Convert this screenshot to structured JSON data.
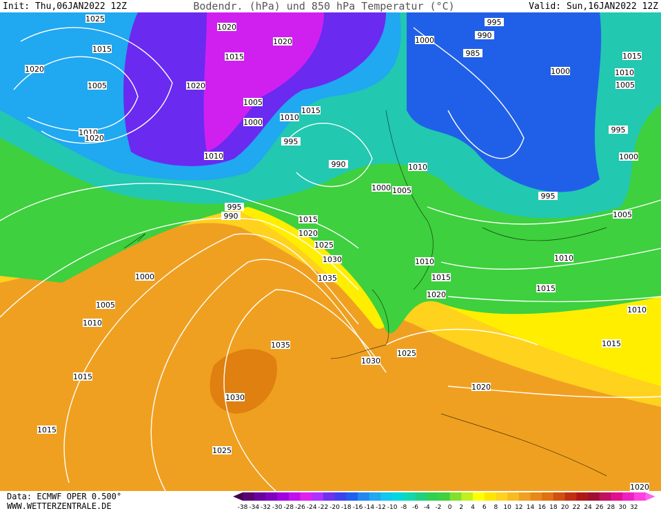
{
  "header": {
    "init": "Init: Thu,06JAN2022 12Z",
    "title": "Bodendr. (hPa) und 850 hPa Temperatur (°C)",
    "valid": "Valid: Sun,16JAN2022 12Z"
  },
  "map": {
    "isobar_labels": [
      "1025",
      "1020",
      "1020",
      "1015",
      "1015",
      "1020",
      "1005",
      "1020",
      "1005",
      "1015",
      "1010",
      "1000",
      "1010",
      "1020",
      "995",
      "1010",
      "990",
      "1010",
      "1000",
      "1005",
      "995",
      "990",
      "1015",
      "1020",
      "1025",
      "1030",
      "1035",
      "1000",
      "1005",
      "1010",
      "1015",
      "1015",
      "1025",
      "1030",
      "1030",
      "1025",
      "1020",
      "1020",
      "1015",
      "1010",
      "1015",
      "1010",
      "1005",
      "995",
      "1000",
      "995",
      "1005",
      "1010",
      "1000",
      "1015",
      "1000",
      "985",
      "990",
      "995",
      "1010",
      "1015",
      "1020",
      "1035"
    ]
  },
  "footer": {
    "data": "Data: ECMWF OPER 0.500°",
    "url": "WWW.WETTERZENTRALE.DE"
  },
  "colorbar": {
    "labels": [
      "-38",
      "-34",
      "-32",
      "-30",
      "-28",
      "-26",
      "-24",
      "-22",
      "-20",
      "-18",
      "-16",
      "-14",
      "-12",
      "-10",
      "-8",
      "-6",
      "-4",
      "-2",
      "0",
      "2",
      "4",
      "6",
      "8",
      "10",
      "12",
      "14",
      "16",
      "18",
      "20",
      "22",
      "24",
      "26",
      "28",
      "30",
      "32"
    ]
  }
}
